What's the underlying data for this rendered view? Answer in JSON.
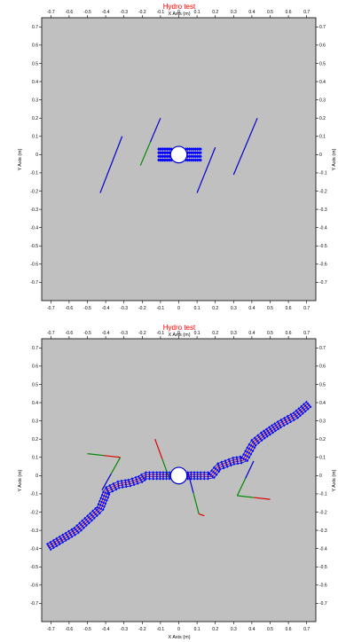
{
  "chart_data": [
    {
      "type": "line",
      "title": "Hydro test",
      "xlabel": "X Axis (m)",
      "ylabel": "Y Axis (m)",
      "xlim": [
        -0.75,
        0.75
      ],
      "ylim": [
        -0.8,
        0.75
      ],
      "xticks": [
        "-0.7",
        "-0.6",
        "-0.5",
        "-0.4",
        "-0.3",
        "-0.2",
        "-0.1",
        "0",
        "0.1",
        "0.2",
        "0.3",
        "0.4",
        "0.5",
        "0.6",
        "0.7"
      ],
      "yticks": [
        "0.7",
        "0.6",
        "0.5",
        "0.4",
        "0.3",
        "0.2",
        "0.1",
        "0",
        "-0.1",
        "-0.2",
        "-0.3",
        "-0.4",
        "-0.5",
        "-0.6",
        "-0.7"
      ],
      "background": "#c0c0c0",
      "colors": {
        "fiber": "#0000cc",
        "marker": "#0000ff",
        "green": "#008800",
        "red": "#dd0000",
        "circle_fill": "#ffffff"
      },
      "circle": {
        "cx": 0,
        "cy": 0,
        "r": 0.045
      },
      "fibers": [
        {
          "x": [
            -0.43,
            -0.31
          ],
          "y": [
            -0.21,
            0.1
          ],
          "colors": [
            "#0000cc"
          ]
        },
        {
          "x": [
            -0.21,
            -0.1
          ],
          "y": [
            -0.06,
            0.2
          ],
          "colors": [
            "#008800",
            "#0000cc"
          ]
        },
        {
          "x": [
            0.1,
            0.2
          ],
          "y": [
            -0.21,
            0.04
          ],
          "colors": [
            "#0000cc"
          ]
        },
        {
          "x": [
            0.3,
            0.43
          ],
          "y": [
            -0.11,
            0.2
          ],
          "colors": [
            "#0000cc"
          ]
        }
      ],
      "rods": [
        {
          "x": [
            -0.11,
            -0.04
          ],
          "y": [
            -0.03,
            0.03
          ],
          "rows": 4
        },
        {
          "x": [
            0.04,
            0.12
          ],
          "y": [
            -0.03,
            0.03
          ],
          "rows": 4
        }
      ]
    },
    {
      "type": "line",
      "title": "Hydro test",
      "xlabel": "X Axis (m)",
      "ylabel": "Y Axis (m)",
      "xlim": [
        -0.75,
        0.75
      ],
      "ylim": [
        -0.8,
        0.75
      ],
      "xticks": [
        "-0.7",
        "-0.6",
        "-0.5",
        "-0.4",
        "-0.3",
        "-0.2",
        "-0.1",
        "0",
        "0.1",
        "0.2",
        "0.3",
        "0.4",
        "0.5",
        "0.6",
        "0.7"
      ],
      "yticks": [
        "0.7",
        "0.6",
        "0.5",
        "0.4",
        "0.3",
        "0.2",
        "0.1",
        "0",
        "-0.1",
        "-0.2",
        "-0.3",
        "-0.4",
        "-0.5",
        "-0.6",
        "-0.7"
      ],
      "background": "#c0c0c0",
      "colors": {
        "fiber": "#0000cc",
        "marker": "#0000ff",
        "green": "#008800",
        "red": "#dd0000",
        "circle_fill": "#ffffff"
      },
      "circle": {
        "cx": 0,
        "cy": 0,
        "r": 0.045
      },
      "chains": [
        {
          "x": [
            -0.71,
            -0.56,
            -0.43,
            -0.39,
            -0.33,
            -0.27,
            -0.21,
            -0.18,
            -0.12,
            -0.05
          ],
          "y": [
            -0.39,
            -0.3,
            -0.18,
            -0.08,
            -0.05,
            -0.04,
            -0.02,
            0.0,
            0.0,
            0.0
          ]
        },
        {
          "x": [
            0.05,
            0.12,
            0.18,
            0.22,
            0.3,
            0.36,
            0.41,
            0.46,
            0.55,
            0.64,
            0.71
          ],
          "y": [
            0.0,
            0.0,
            0.0,
            0.05,
            0.08,
            0.09,
            0.18,
            0.22,
            0.28,
            0.33,
            0.39
          ]
        }
      ],
      "fibers": [
        {
          "x": [
            -0.5,
            -0.32
          ],
          "y": [
            0.12,
            0.1
          ],
          "colors": [
            "#008800",
            "#dd0000"
          ]
        },
        {
          "x": [
            -0.32,
            -0.42
          ],
          "y": [
            0.1,
            -0.08
          ],
          "colors": [
            "#008800",
            "#0000cc"
          ]
        },
        {
          "x": [
            -0.13,
            -0.05
          ],
          "y": [
            0.2,
            -0.02
          ],
          "colors": [
            "#dd0000",
            "#008800"
          ]
        },
        {
          "x": [
            0.05,
            0.11
          ],
          "y": [
            0.02,
            -0.21
          ],
          "colors": [
            "#0000cc",
            "#008800"
          ]
        },
        {
          "x": [
            0.11,
            0.14
          ],
          "y": [
            -0.21,
            -0.22
          ],
          "colors": [
            "#dd0000"
          ]
        },
        {
          "x": [
            0.32,
            0.5
          ],
          "y": [
            -0.11,
            -0.13
          ],
          "colors": [
            "#008800",
            "#dd0000"
          ]
        },
        {
          "x": [
            0.32,
            0.41
          ],
          "y": [
            -0.11,
            0.08
          ],
          "colors": [
            "#008800",
            "#0000cc"
          ]
        }
      ]
    }
  ]
}
